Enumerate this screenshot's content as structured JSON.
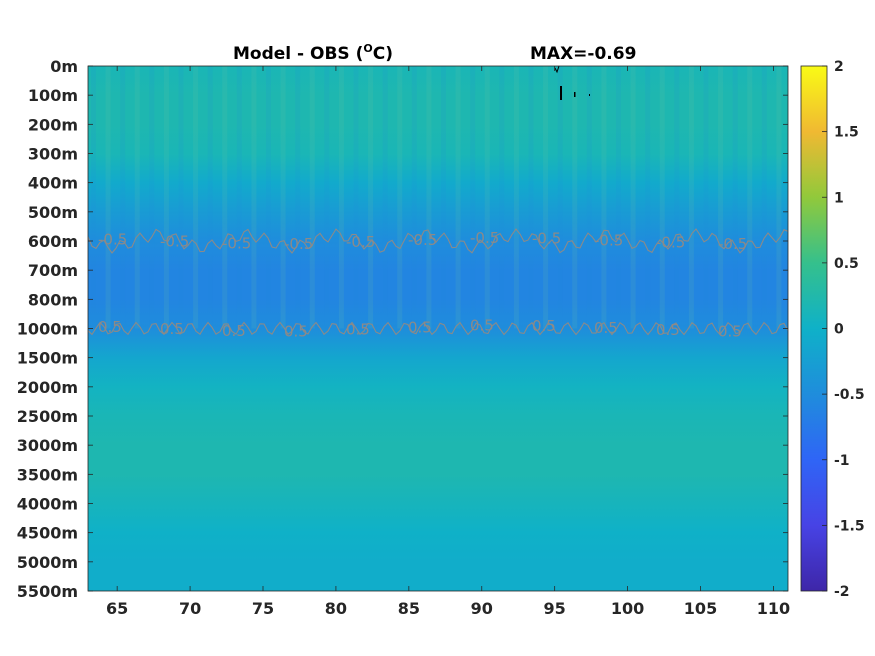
{
  "chart_data": {
    "type": "heatmap",
    "title": "Model - OBS (°C)",
    "title_main": "Model - OBS (",
    "title_sup": "O",
    "title_unit": "C)",
    "annotation": "MAX=-0.69",
    "xlabel": "",
    "ylabel": "",
    "xlim": [
      63,
      111
    ],
    "x_ticks": [
      65,
      70,
      75,
      80,
      85,
      90,
      95,
      100,
      105,
      110
    ],
    "y_tick_labels": [
      "0m",
      "100m",
      "200m",
      "300m",
      "400m",
      "500m",
      "600m",
      "700m",
      "800m",
      "1000m",
      "1500m",
      "2000m",
      "2500m",
      "3000m",
      "3500m",
      "4000m",
      "4500m",
      "5000m",
      "5500m"
    ],
    "depth_levels_m": [
      0,
      100,
      200,
      300,
      400,
      500,
      600,
      700,
      800,
      1000,
      1500,
      2000,
      2500,
      3000,
      3500,
      4000,
      4500,
      5000,
      5500
    ],
    "depth_profile": {
      "depths_m": [
        0,
        100,
        200,
        300,
        400,
        500,
        600,
        700,
        800,
        1000,
        1500,
        2000,
        2500,
        3000,
        3500,
        4000,
        4500,
        5000,
        5500
      ],
      "values": [
        0.15,
        0.2,
        0.2,
        0.15,
        -0.1,
        -0.3,
        -0.5,
        -0.6,
        -0.6,
        -0.5,
        -0.15,
        0.05,
        0.15,
        0.2,
        0.2,
        0.1,
        0.0,
        -0.05,
        -0.05
      ]
    },
    "contour_levels": [
      -0.5,
      0.5
    ],
    "contour_label": "-0.5",
    "contour_label_short": "0.5",
    "contour_depths_m": [
      600,
      1000
    ],
    "colorbar": {
      "colormap": "parula",
      "clim": [
        -2,
        2
      ],
      "ticks": [
        "2",
        "1.5",
        "1",
        "0.5",
        "0",
        "-0.5",
        "-1",
        "-1.5",
        "-2"
      ],
      "tick_values": [
        2,
        1.5,
        1,
        0.5,
        0,
        -0.5,
        -1,
        -1.5,
        -2
      ]
    },
    "grid": false
  }
}
